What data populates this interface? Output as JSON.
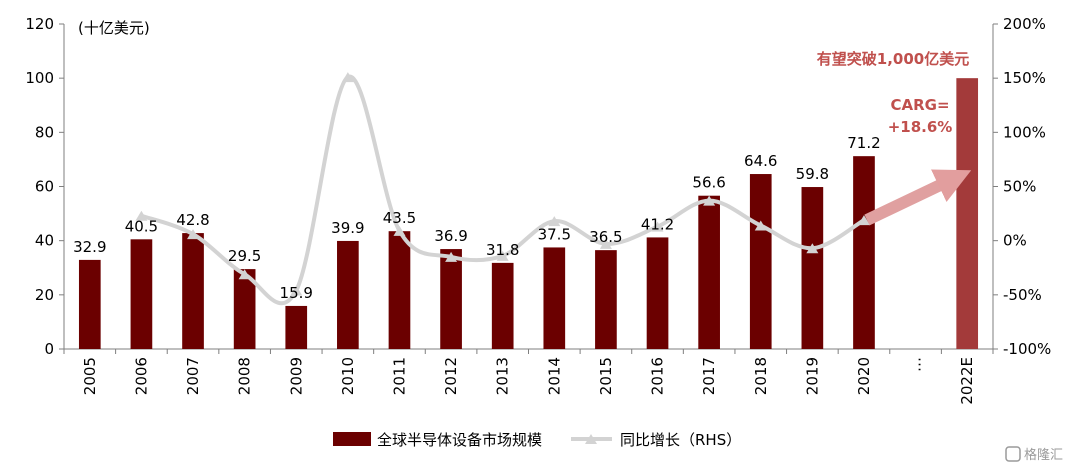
{
  "chart_data": {
    "type": "bar",
    "unit_label": "(十亿美元)",
    "categories": [
      "2005",
      "2006",
      "2007",
      "2008",
      "2009",
      "2010",
      "2011",
      "2012",
      "2013",
      "2014",
      "2015",
      "2016",
      "2017",
      "2018",
      "2019",
      "2020",
      "…",
      "2022E"
    ],
    "series": [
      {
        "name": "全球半导体设备市场规模",
        "type": "bar",
        "axis": "left",
        "color": "#6b0000",
        "highlight_color": "#a33a3a",
        "values": [
          32.9,
          40.5,
          42.8,
          29.5,
          15.9,
          39.9,
          43.5,
          36.9,
          31.8,
          37.5,
          36.5,
          41.2,
          56.6,
          64.6,
          59.8,
          71.2,
          null,
          100
        ],
        "labels": [
          "32.9",
          "40.5",
          "42.8",
          "29.5",
          "15.9",
          "39.9",
          "43.5",
          "36.9",
          "31.8",
          "37.5",
          "36.5",
          "41.2",
          "56.6",
          "64.6",
          "59.8",
          "71.2",
          "",
          ""
        ]
      },
      {
        "name": "同比增长（RHS）",
        "type": "line",
        "axis": "right",
        "color": "#d3d3d3",
        "values": [
          null,
          23,
          6,
          -31,
          -46,
          151,
          9,
          -15,
          -14,
          18,
          -3,
          13,
          37,
          14,
          -7,
          19,
          null,
          null
        ]
      }
    ],
    "left_axis": {
      "ylim": [
        0,
        120
      ],
      "ticks": [
        "0",
        "20",
        "40",
        "60",
        "80",
        "100",
        "120"
      ]
    },
    "right_axis": {
      "ylim": [
        -100,
        200
      ],
      "ticks": [
        "-100%",
        "-50%",
        "0%",
        "50%",
        "100%",
        "150%",
        "200%"
      ]
    },
    "annotations": {
      "target_text": "有望突破1,000亿美元",
      "cagr_line1": "CARG=",
      "cagr_line2": "+18.6%",
      "color": "#c0504d",
      "arrow_color": "#e0a0a0"
    },
    "legend_placement": "bottom"
  },
  "watermark": "格隆汇"
}
